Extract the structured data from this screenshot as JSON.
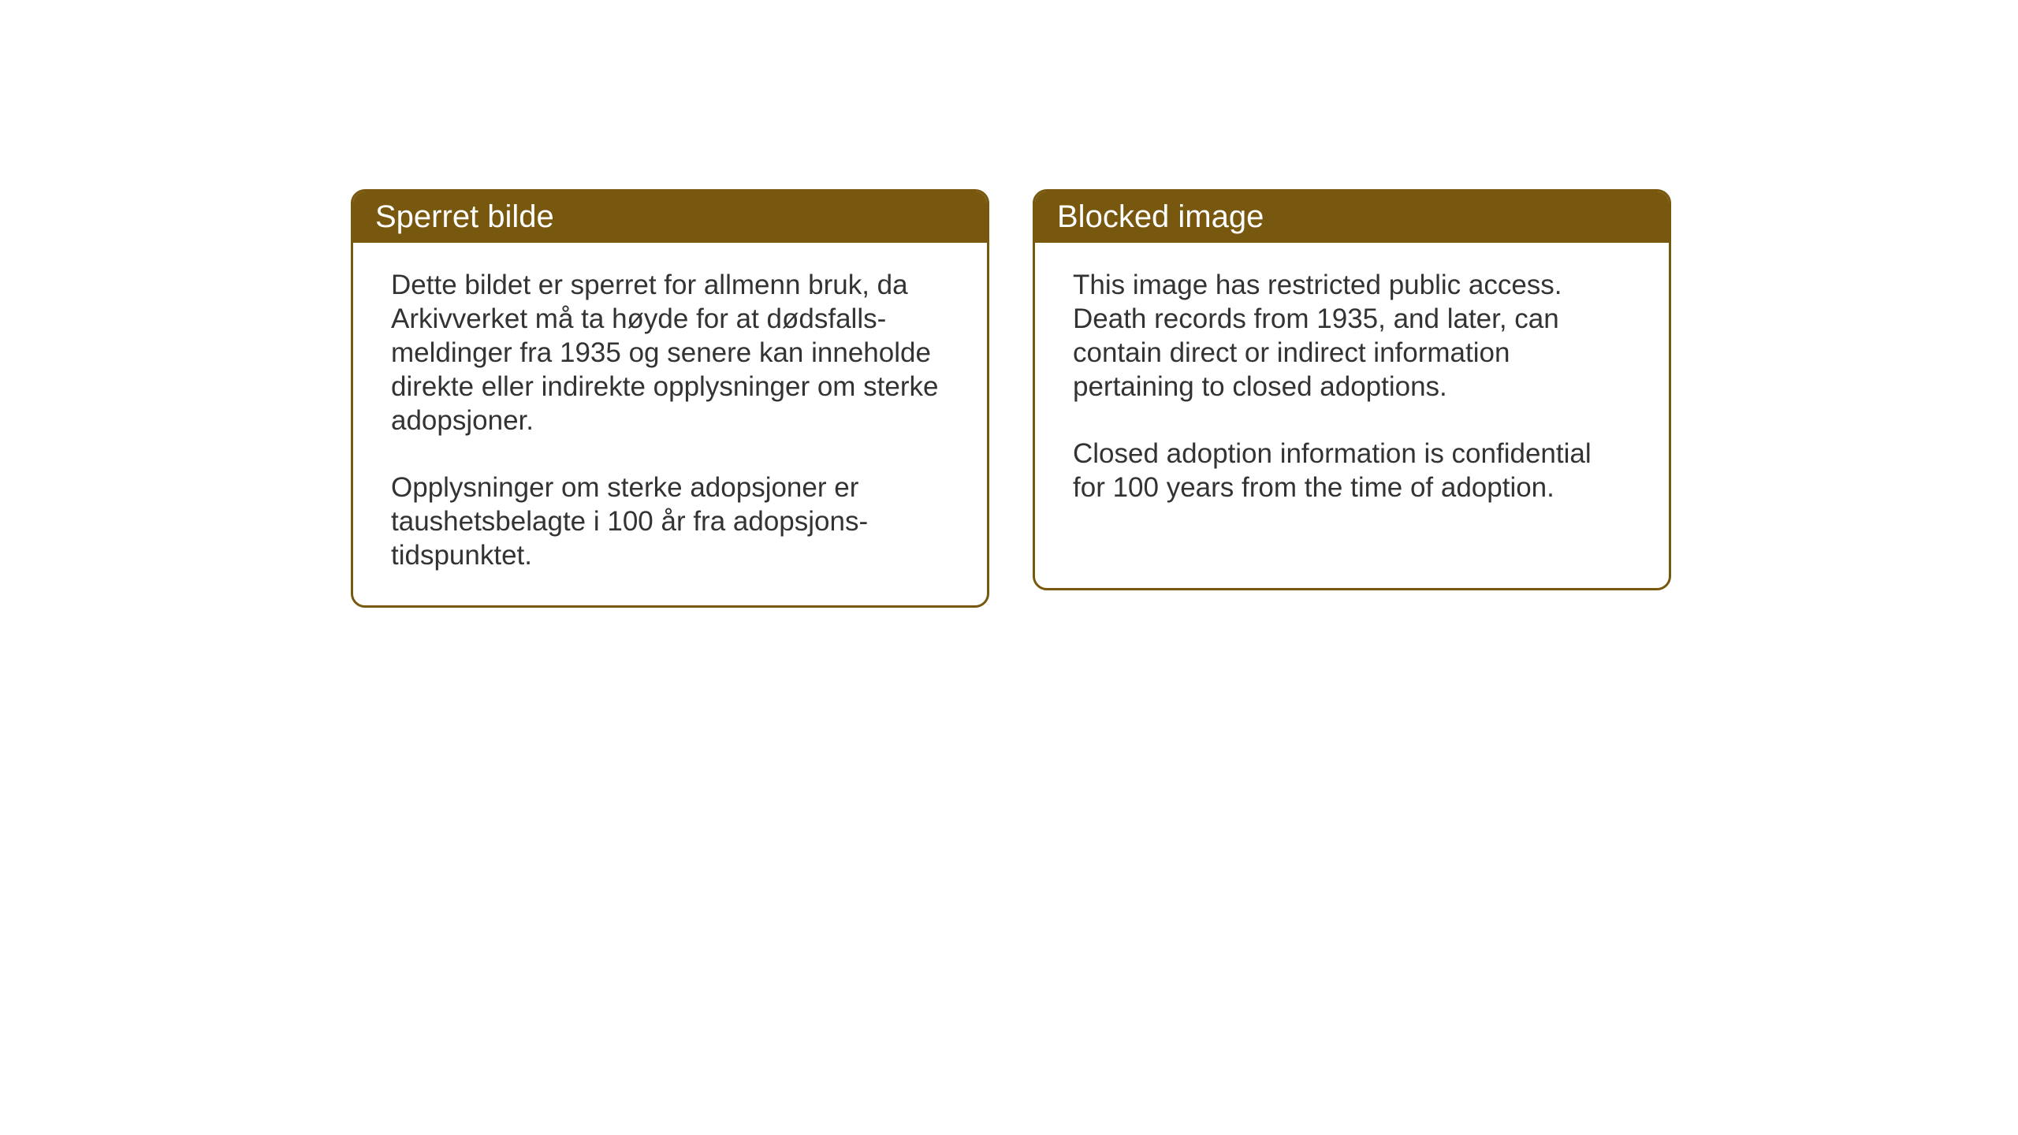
{
  "cards": {
    "norwegian": {
      "title": "Sperret bilde",
      "paragraph1": "Dette bildet er sperret for allmenn bruk, da Arkivverket må ta høyde for at dødsfalls-meldinger fra 1935 og senere kan inneholde direkte eller indirekte opplysninger om sterke adopsjoner.",
      "paragraph2": "Opplysninger om sterke adopsjoner er taushetsbelagte i 100 år fra adopsjons-tidspunktet."
    },
    "english": {
      "title": "Blocked image",
      "paragraph1": "This image has restricted public access. Death records from 1935, and later, can contain direct or indirect information pertaining to closed adoptions.",
      "paragraph2": "Closed adoption information is confidential for 100 years from the time of adoption."
    }
  },
  "styling": {
    "header_bg_color": "#78570f",
    "header_text_color": "#ffffff",
    "border_color": "#78570f",
    "body_text_color": "#333333",
    "background_color": "#ffffff",
    "header_fontsize": 40,
    "body_fontsize": 35,
    "border_radius": 18,
    "border_width": 3
  }
}
